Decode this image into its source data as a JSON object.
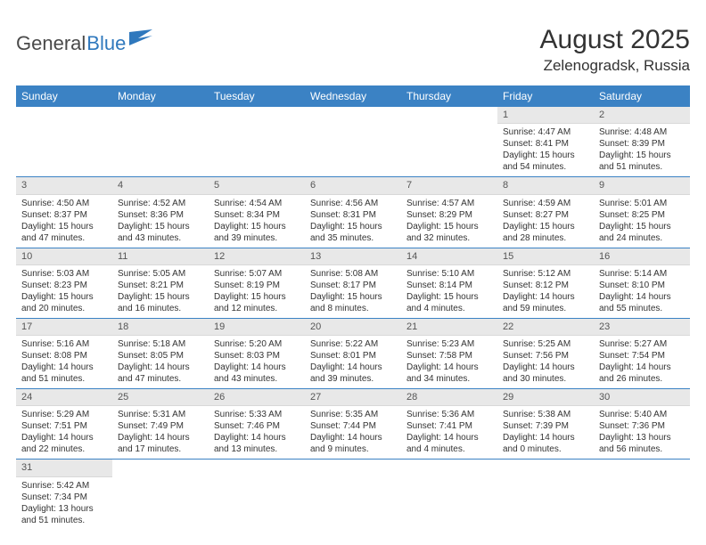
{
  "brand": {
    "part1": "General",
    "part2": "Blue"
  },
  "title": "August 2025",
  "location": "Zelenogradsk, Russia",
  "colors": {
    "header_bg": "#3b82c4",
    "header_text": "#ffffff",
    "daynum_bg": "#e8e8e8",
    "row_border": "#3b82c4",
    "brand_blue": "#2f78bd",
    "brand_gray": "#4a4a4a"
  },
  "typography": {
    "title_fontsize": 30,
    "location_fontsize": 17,
    "dayheader_fontsize": 12,
    "cell_fontsize": 10
  },
  "day_headers": [
    "Sunday",
    "Monday",
    "Tuesday",
    "Wednesday",
    "Thursday",
    "Friday",
    "Saturday"
  ],
  "weeks": [
    [
      null,
      null,
      null,
      null,
      null,
      {
        "n": "1",
        "sunrise": "Sunrise: 4:47 AM",
        "sunset": "Sunset: 8:41 PM",
        "daylight": "Daylight: 15 hours and 54 minutes."
      },
      {
        "n": "2",
        "sunrise": "Sunrise: 4:48 AM",
        "sunset": "Sunset: 8:39 PM",
        "daylight": "Daylight: 15 hours and 51 minutes."
      }
    ],
    [
      {
        "n": "3",
        "sunrise": "Sunrise: 4:50 AM",
        "sunset": "Sunset: 8:37 PM",
        "daylight": "Daylight: 15 hours and 47 minutes."
      },
      {
        "n": "4",
        "sunrise": "Sunrise: 4:52 AM",
        "sunset": "Sunset: 8:36 PM",
        "daylight": "Daylight: 15 hours and 43 minutes."
      },
      {
        "n": "5",
        "sunrise": "Sunrise: 4:54 AM",
        "sunset": "Sunset: 8:34 PM",
        "daylight": "Daylight: 15 hours and 39 minutes."
      },
      {
        "n": "6",
        "sunrise": "Sunrise: 4:56 AM",
        "sunset": "Sunset: 8:31 PM",
        "daylight": "Daylight: 15 hours and 35 minutes."
      },
      {
        "n": "7",
        "sunrise": "Sunrise: 4:57 AM",
        "sunset": "Sunset: 8:29 PM",
        "daylight": "Daylight: 15 hours and 32 minutes."
      },
      {
        "n": "8",
        "sunrise": "Sunrise: 4:59 AM",
        "sunset": "Sunset: 8:27 PM",
        "daylight": "Daylight: 15 hours and 28 minutes."
      },
      {
        "n": "9",
        "sunrise": "Sunrise: 5:01 AM",
        "sunset": "Sunset: 8:25 PM",
        "daylight": "Daylight: 15 hours and 24 minutes."
      }
    ],
    [
      {
        "n": "10",
        "sunrise": "Sunrise: 5:03 AM",
        "sunset": "Sunset: 8:23 PM",
        "daylight": "Daylight: 15 hours and 20 minutes."
      },
      {
        "n": "11",
        "sunrise": "Sunrise: 5:05 AM",
        "sunset": "Sunset: 8:21 PM",
        "daylight": "Daylight: 15 hours and 16 minutes."
      },
      {
        "n": "12",
        "sunrise": "Sunrise: 5:07 AM",
        "sunset": "Sunset: 8:19 PM",
        "daylight": "Daylight: 15 hours and 12 minutes."
      },
      {
        "n": "13",
        "sunrise": "Sunrise: 5:08 AM",
        "sunset": "Sunset: 8:17 PM",
        "daylight": "Daylight: 15 hours and 8 minutes."
      },
      {
        "n": "14",
        "sunrise": "Sunrise: 5:10 AM",
        "sunset": "Sunset: 8:14 PM",
        "daylight": "Daylight: 15 hours and 4 minutes."
      },
      {
        "n": "15",
        "sunrise": "Sunrise: 5:12 AM",
        "sunset": "Sunset: 8:12 PM",
        "daylight": "Daylight: 14 hours and 59 minutes."
      },
      {
        "n": "16",
        "sunrise": "Sunrise: 5:14 AM",
        "sunset": "Sunset: 8:10 PM",
        "daylight": "Daylight: 14 hours and 55 minutes."
      }
    ],
    [
      {
        "n": "17",
        "sunrise": "Sunrise: 5:16 AM",
        "sunset": "Sunset: 8:08 PM",
        "daylight": "Daylight: 14 hours and 51 minutes."
      },
      {
        "n": "18",
        "sunrise": "Sunrise: 5:18 AM",
        "sunset": "Sunset: 8:05 PM",
        "daylight": "Daylight: 14 hours and 47 minutes."
      },
      {
        "n": "19",
        "sunrise": "Sunrise: 5:20 AM",
        "sunset": "Sunset: 8:03 PM",
        "daylight": "Daylight: 14 hours and 43 minutes."
      },
      {
        "n": "20",
        "sunrise": "Sunrise: 5:22 AM",
        "sunset": "Sunset: 8:01 PM",
        "daylight": "Daylight: 14 hours and 39 minutes."
      },
      {
        "n": "21",
        "sunrise": "Sunrise: 5:23 AM",
        "sunset": "Sunset: 7:58 PM",
        "daylight": "Daylight: 14 hours and 34 minutes."
      },
      {
        "n": "22",
        "sunrise": "Sunrise: 5:25 AM",
        "sunset": "Sunset: 7:56 PM",
        "daylight": "Daylight: 14 hours and 30 minutes."
      },
      {
        "n": "23",
        "sunrise": "Sunrise: 5:27 AM",
        "sunset": "Sunset: 7:54 PM",
        "daylight": "Daylight: 14 hours and 26 minutes."
      }
    ],
    [
      {
        "n": "24",
        "sunrise": "Sunrise: 5:29 AM",
        "sunset": "Sunset: 7:51 PM",
        "daylight": "Daylight: 14 hours and 22 minutes."
      },
      {
        "n": "25",
        "sunrise": "Sunrise: 5:31 AM",
        "sunset": "Sunset: 7:49 PM",
        "daylight": "Daylight: 14 hours and 17 minutes."
      },
      {
        "n": "26",
        "sunrise": "Sunrise: 5:33 AM",
        "sunset": "Sunset: 7:46 PM",
        "daylight": "Daylight: 14 hours and 13 minutes."
      },
      {
        "n": "27",
        "sunrise": "Sunrise: 5:35 AM",
        "sunset": "Sunset: 7:44 PM",
        "daylight": "Daylight: 14 hours and 9 minutes."
      },
      {
        "n": "28",
        "sunrise": "Sunrise: 5:36 AM",
        "sunset": "Sunset: 7:41 PM",
        "daylight": "Daylight: 14 hours and 4 minutes."
      },
      {
        "n": "29",
        "sunrise": "Sunrise: 5:38 AM",
        "sunset": "Sunset: 7:39 PM",
        "daylight": "Daylight: 14 hours and 0 minutes."
      },
      {
        "n": "30",
        "sunrise": "Sunrise: 5:40 AM",
        "sunset": "Sunset: 7:36 PM",
        "daylight": "Daylight: 13 hours and 56 minutes."
      }
    ],
    [
      {
        "n": "31",
        "sunrise": "Sunrise: 5:42 AM",
        "sunset": "Sunset: 7:34 PM",
        "daylight": "Daylight: 13 hours and 51 minutes."
      },
      null,
      null,
      null,
      null,
      null,
      null
    ]
  ]
}
